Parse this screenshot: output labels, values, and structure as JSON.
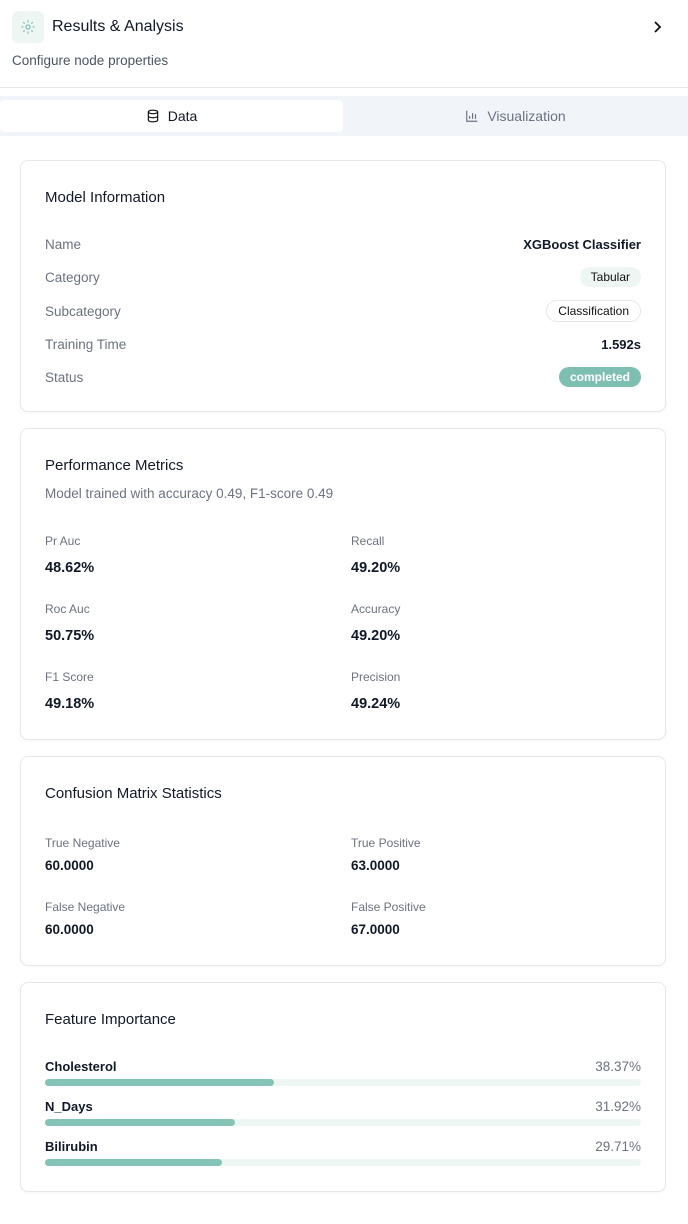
{
  "header": {
    "title": "Results & Analysis",
    "subtitle": "Configure node properties"
  },
  "tabs": [
    "Data",
    "Visualization"
  ],
  "model_information": {
    "title": "Model Information",
    "rows": [
      {
        "label": "Name",
        "value": "XGBoost Classifier"
      },
      {
        "label": "Category",
        "value": "Tabular"
      },
      {
        "label": "Subcategory",
        "value": "Classification"
      },
      {
        "label": "Training Time",
        "value": "1.592s"
      },
      {
        "label": "Status",
        "value": "completed"
      }
    ]
  },
  "performance_metrics": {
    "title": "Performance Metrics",
    "description": "Model trained with accuracy 0.49, F1-score 0.49",
    "metrics": [
      {
        "label": "Pr Auc",
        "value": "48.62%"
      },
      {
        "label": "Recall",
        "value": "49.20%"
      },
      {
        "label": "Roc Auc",
        "value": "50.75%"
      },
      {
        "label": "Accuracy",
        "value": "49.20%"
      },
      {
        "label": "F1 Score",
        "value": "49.18%"
      },
      {
        "label": "Precision",
        "value": "49.24%"
      }
    ]
  },
  "confusion_matrix": {
    "title": "Confusion Matrix Statistics",
    "stats": [
      {
        "label": "True Negative",
        "value": "60.0000"
      },
      {
        "label": "True Positive",
        "value": "63.0000"
      },
      {
        "label": "False Negative",
        "value": "60.0000"
      },
      {
        "label": "False Positive",
        "value": "67.0000"
      }
    ]
  },
  "feature_importance": {
    "title": "Feature Importance",
    "features": [
      {
        "name": "Cholesterol",
        "value": 38.37,
        "label": "38.37%"
      },
      {
        "name": "N_Days",
        "value": 31.92,
        "label": "31.92%"
      },
      {
        "name": "Bilirubin",
        "value": 29.71,
        "label": "29.71%"
      }
    ]
  }
}
